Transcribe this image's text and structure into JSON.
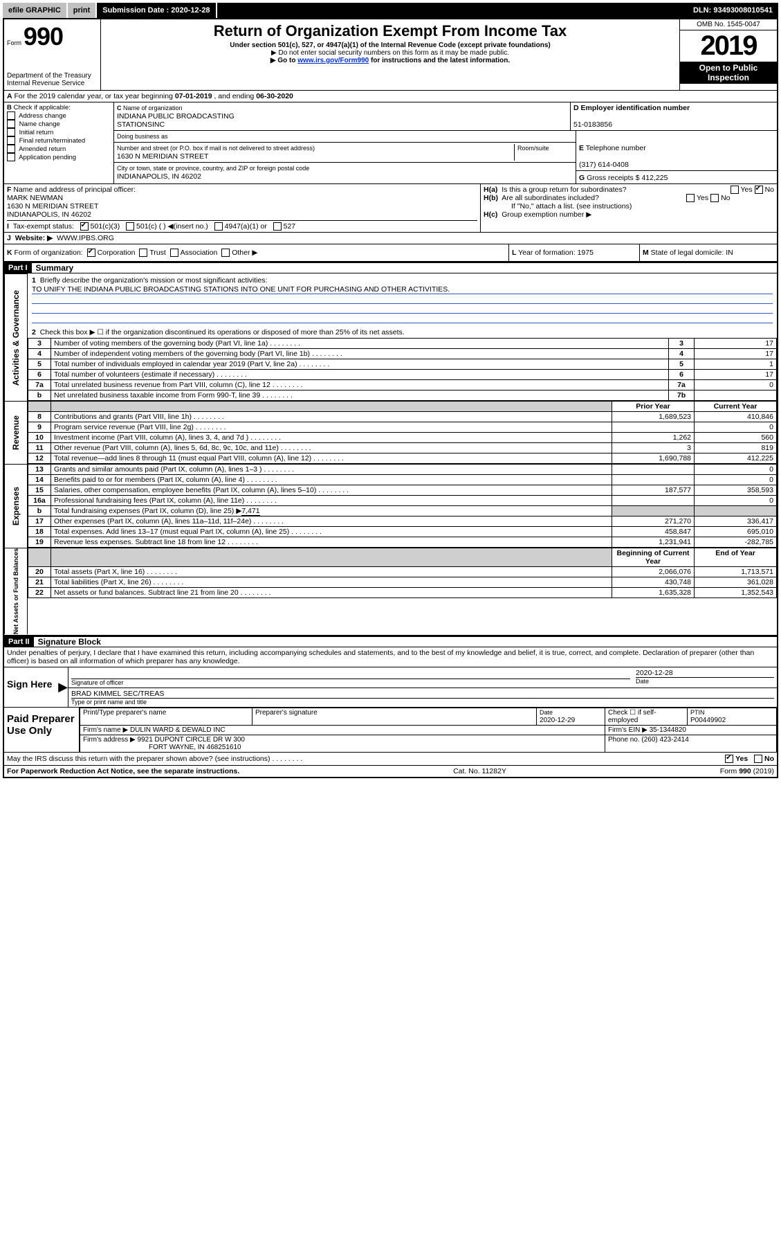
{
  "topbar": {
    "efile": "efile GRAPHIC",
    "print": "print",
    "submission_label": "Submission Date :",
    "submission_date": "2020-12-28",
    "dln_label": "DLN:",
    "dln": "93493008010541"
  },
  "header": {
    "form_small": "Form",
    "form_big": "990",
    "title": "Return of Organization Exempt From Income Tax",
    "under": "Under section 501(c), 527, or 4947(a)(1) of the Internal Revenue Code (except private foundations)",
    "do_not": "▶ Do not enter social security numbers on this form as it may be made public.",
    "goto_pre": "▶ Go to ",
    "goto_link": "www.irs.gov/Form990",
    "goto_post": " for instructions and the latest information.",
    "omb": "OMB No. 1545-0047",
    "year": "2019",
    "open": "Open to Public Inspection",
    "dept1": "Department of the Treasury",
    "dept2": "Internal Revenue Service"
  },
  "periodA": {
    "text_pre": "For the 2019 calendar year, or tax year beginning ",
    "begin": "07-01-2019",
    "mid": " , and ending ",
    "end": "06-30-2020"
  },
  "boxB": {
    "label": "Check if applicable:",
    "items": [
      "Address change",
      "Name change",
      "Initial return",
      "Final return/terminated",
      "Amended return",
      "Application pending"
    ],
    "B": "B"
  },
  "boxC": {
    "C": "C",
    "name_label": "Name of organization",
    "name1": "INDIANA PUBLIC BROADCASTING",
    "name2": "STATIONSINC",
    "dba_label": "Doing business as",
    "addr_label": "Number and street (or P.O. box if mail is not delivered to street address)",
    "room_label": "Room/suite",
    "addr": "1630 N MERIDIAN STREET",
    "city_label": "City or town, state or province, country, and ZIP or foreign postal code",
    "city": "INDIANAPOLIS, IN  46202"
  },
  "boxD": {
    "D": "D",
    "label": "Employer identification number",
    "ein": "51-0183856"
  },
  "boxE": {
    "E": "E",
    "label": "Telephone number",
    "phone": "(317) 614-0408"
  },
  "boxG": {
    "G": "G",
    "label": "Gross receipts $",
    "val": "412,225"
  },
  "boxF": {
    "F": "F",
    "label": "Name and address of principal officer:",
    "l1": "MARK NEWMAN",
    "l2": "1630 N MERIDIAN STREET",
    "l3": "INDIANAPOLIS, IN  46202"
  },
  "boxH": {
    "Ha": "H(a)",
    "Ha_text": "Is this a group return for subordinates?",
    "yes": "Yes",
    "no": "No",
    "Hb": "H(b)",
    "Hb_text": "Are all subordinates included?",
    "Hb_note": "If \"No,\" attach a list. (see instructions)",
    "Hc": "H(c)",
    "Hc_text": "Group exemption number ▶"
  },
  "boxI": {
    "I": "I",
    "label": "Tax-exempt status:",
    "opts": [
      "501(c)(3)",
      "501(c) (  ) ◀(insert no.)",
      "4947(a)(1) or",
      "527"
    ]
  },
  "boxJ": {
    "J": "J",
    "label": "Website: ▶",
    "val": "WWW.IPBS.ORG"
  },
  "boxK": {
    "K": "K",
    "label": "Form of organization:",
    "opts": [
      "Corporation",
      "Trust",
      "Association",
      "Other ▶"
    ]
  },
  "boxL": {
    "L": "L",
    "label": "Year of formation:",
    "val": "1975"
  },
  "boxM": {
    "M": "M",
    "label": "State of legal domicile:",
    "val": "IN"
  },
  "partI": {
    "tag": "Part I",
    "title": "Summary"
  },
  "summary": {
    "line1_label": "Briefly describe the organization's mission or most significant activities:",
    "line1_no": "1",
    "mission": "TO UNIFY THE INDIANA PUBLIC BROADCASTING STATIONS INTO ONE UNIT FOR PURCHASING AND OTHER ACTIVITIES.",
    "line2_no": "2",
    "line2": "Check this box ▶ ☐  if the organization discontinued its operations or disposed of more than 25% of its net assets.",
    "rows_simple": [
      {
        "no": "3",
        "desc": "Number of voting members of the governing body (Part VI, line 1a)",
        "box": "3",
        "val": "17"
      },
      {
        "no": "4",
        "desc": "Number of independent voting members of the governing body (Part VI, line 1b)",
        "box": "4",
        "val": "17"
      },
      {
        "no": "5",
        "desc": "Total number of individuals employed in calendar year 2019 (Part V, line 2a)",
        "box": "5",
        "val": "1"
      },
      {
        "no": "6",
        "desc": "Total number of volunteers (estimate if necessary)",
        "box": "6",
        "val": "17"
      },
      {
        "no": "7a",
        "desc": "Total unrelated business revenue from Part VIII, column (C), line 12",
        "box": "7a",
        "val": "0"
      },
      {
        "no": "b",
        "desc": "Net unrelated business taxable income from Form 990-T, line 39",
        "box": "7b",
        "val": ""
      }
    ],
    "col_head_prior": "Prior Year",
    "col_head_curr": "Current Year",
    "rev_rows": [
      {
        "no": "8",
        "desc": "Contributions and grants (Part VIII, line 1h)",
        "p": "1,689,523",
        "c": "410,846"
      },
      {
        "no": "9",
        "desc": "Program service revenue (Part VIII, line 2g)",
        "p": "",
        "c": "0"
      },
      {
        "no": "10",
        "desc": "Investment income (Part VIII, column (A), lines 3, 4, and 7d )",
        "p": "1,262",
        "c": "560"
      },
      {
        "no": "11",
        "desc": "Other revenue (Part VIII, column (A), lines 5, 6d, 8c, 9c, 10c, and 11e)",
        "p": "3",
        "c": "819"
      },
      {
        "no": "12",
        "desc": "Total revenue—add lines 8 through 11 (must equal Part VIII, column (A), line 12)",
        "p": "1,690,788",
        "c": "412,225"
      }
    ],
    "exp_rows": [
      {
        "no": "13",
        "desc": "Grants and similar amounts paid (Part IX, column (A), lines 1–3 )",
        "p": "",
        "c": "0"
      },
      {
        "no": "14",
        "desc": "Benefits paid to or for members (Part IX, column (A), line 4)",
        "p": "",
        "c": "0"
      },
      {
        "no": "15",
        "desc": "Salaries, other compensation, employee benefits (Part IX, column (A), lines 5–10)",
        "p": "187,577",
        "c": "358,593"
      },
      {
        "no": "16a",
        "desc": "Professional fundraising fees (Part IX, column (A), line 11e)",
        "p": "",
        "c": "0"
      }
    ],
    "exp_16b_no": "b",
    "exp_16b": "Total fundraising expenses (Part IX, column (D), line 25) ▶",
    "exp_16b_val": "7,471",
    "exp_rows2": [
      {
        "no": "17",
        "desc": "Other expenses (Part IX, column (A), lines 11a–11d, 11f–24e)",
        "p": "271,270",
        "c": "336,417"
      },
      {
        "no": "18",
        "desc": "Total expenses. Add lines 13–17 (must equal Part IX, column (A), line 25)",
        "p": "458,847",
        "c": "695,010"
      },
      {
        "no": "19",
        "desc": "Revenue less expenses. Subtract line 18 from line 12",
        "p": "1,231,941",
        "c": "-282,785"
      }
    ],
    "na_head_begin": "Beginning of Current Year",
    "na_head_end": "End of Year",
    "na_rows": [
      {
        "no": "20",
        "desc": "Total assets (Part X, line 16)",
        "p": "2,066,076",
        "c": "1,713,571"
      },
      {
        "no": "21",
        "desc": "Total liabilities (Part X, line 26)",
        "p": "430,748",
        "c": "361,028"
      },
      {
        "no": "22",
        "desc": "Net assets or fund balances. Subtract line 21 from line 20",
        "p": "1,635,328",
        "c": "1,352,543"
      }
    ],
    "side_ag": "Activities & Governance",
    "side_rev": "Revenue",
    "side_exp": "Expenses",
    "side_na": "Net Assets or Fund Balances"
  },
  "partII": {
    "tag": "Part II",
    "title": "Signature Block",
    "perjury": "Under penalties of perjury, I declare that I have examined this return, including accompanying schedules and statements, and to the best of my knowledge and belief, it is true, correct, and complete. Declaration of preparer (other than officer) is based on all information of which preparer has any knowledge."
  },
  "sign": {
    "sign_here": "Sign Here",
    "sig_officer": "Signature of officer",
    "sig_date": "2020-12-28",
    "date_label": "Date",
    "name": "BRAD KIMMEL  SEC/TREAS",
    "name_label": "Type or print name and title"
  },
  "paid": {
    "label": "Paid Preparer Use Only",
    "col1": "Print/Type preparer's name",
    "col2": "Preparer's signature",
    "col3": "Date",
    "col3v": "2020-12-29",
    "col4": "Check ☐ if self-employed",
    "col5": "PTIN",
    "col5v": "P00449902",
    "firm_name_label": "Firm's name    ▶",
    "firm_name": "DULIN WARD & DEWALD INC",
    "firm_ein_label": "Firm's EIN ▶",
    "firm_ein": "35-1344820",
    "firm_addr_label": "Firm's address ▶",
    "firm_addr1": "9921 DUPONT CIRCLE DR W 300",
    "firm_addr2": "FORT WAYNE, IN  468251610",
    "phone_label": "Phone no.",
    "phone": "(260) 423-2414"
  },
  "discuss": {
    "q": "May the IRS discuss this return with the preparer shown above? (see instructions)",
    "yes": "Yes",
    "no": "No"
  },
  "footer": {
    "l": "For Paperwork Reduction Act Notice, see the separate instructions.",
    "m": "Cat. No. 11282Y",
    "r": "Form 990 (2019)"
  },
  "dots": "    .    .    .    .    .    .    .    ."
}
